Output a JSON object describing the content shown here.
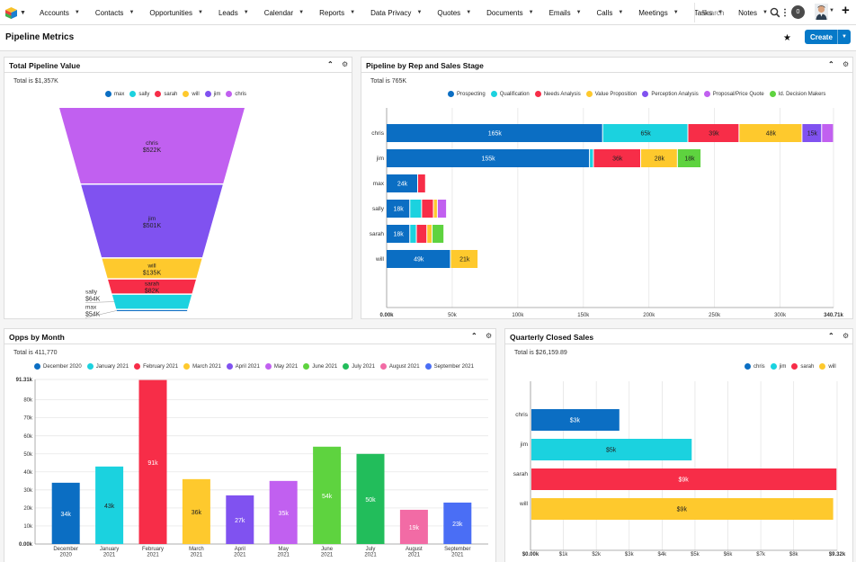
{
  "nav": {
    "items": [
      {
        "label": "Accounts"
      },
      {
        "label": "Contacts"
      },
      {
        "label": "Opportunities"
      },
      {
        "label": "Leads"
      },
      {
        "label": "Calendar"
      },
      {
        "label": "Reports"
      },
      {
        "label": "Data Privacy"
      },
      {
        "label": "Quotes"
      },
      {
        "label": "Documents"
      },
      {
        "label": "Emails"
      },
      {
        "label": "Calls"
      },
      {
        "label": "Meetings"
      },
      {
        "label": "Tasks"
      },
      {
        "label": "Notes"
      }
    ],
    "more_label": "⋮",
    "search_placeholder": "Search",
    "notification_count": "0"
  },
  "header": {
    "title": "Pipeline Metrics",
    "create_label": "Create"
  },
  "panels": {
    "funnel": {
      "title": "Total Pipeline Value",
      "total": "Total is $1,357K"
    },
    "rep_stage": {
      "title": "Pipeline by Rep and Sales Stage",
      "total": "Total is 765K"
    },
    "opps_month": {
      "title": "Opps by Month",
      "total": "Total is 411,770"
    },
    "quarterly": {
      "title": "Quarterly Closed Sales",
      "total": "Total is $26,159.89"
    }
  },
  "colors": {
    "blue": "#0b6ec3",
    "cyan": "#1bd2df",
    "red": "#f72d48",
    "yellow": "#fec92d",
    "purple": "#8052f0",
    "violet": "#c160f0",
    "green": "#5ed33f",
    "green2": "#22bd5b",
    "pink": "#f26ba5",
    "blue2": "#4a6ef5",
    "accent": "#0679c8"
  },
  "chart_data": [
    {
      "type": "funnel",
      "title": "Total Pipeline Value",
      "legend": [
        "max",
        "sally",
        "sarah",
        "will",
        "jim",
        "chris"
      ],
      "stages": [
        {
          "name": "chris",
          "label": "$522K",
          "value": 522,
          "color": "#c160f0"
        },
        {
          "name": "jim",
          "label": "$501K",
          "value": 501,
          "color": "#8052f0"
        },
        {
          "name": "will",
          "label": "$135K",
          "value": 135,
          "color": "#fec92d"
        },
        {
          "name": "sarah",
          "label": "$82K",
          "value": 82,
          "color": "#f72d48"
        },
        {
          "name": "sally",
          "label": "$64K",
          "value": 64,
          "color": "#1bd2df"
        },
        {
          "name": "max",
          "label": "$54K",
          "value": 54,
          "color": "#0b6ec3"
        }
      ]
    },
    {
      "type": "bar",
      "orientation": "horizontal-stacked",
      "title": "Pipeline by Rep and Sales Stage",
      "categories": [
        "chris",
        "jim",
        "max",
        "sally",
        "sarah",
        "will"
      ],
      "series": [
        {
          "name": "Prospecting",
          "color": "#0b6ec3",
          "values": [
            165,
            155,
            24,
            18,
            18,
            49
          ]
        },
        {
          "name": "Qualification",
          "color": "#1bd2df",
          "values": [
            65,
            3,
            0,
            9,
            5,
            0
          ]
        },
        {
          "name": "Needs Analysis",
          "color": "#f72d48",
          "values": [
            39,
            36,
            6,
            9,
            8,
            0
          ]
        },
        {
          "name": "Value Proposition",
          "color": "#fec92d",
          "values": [
            48,
            28,
            0,
            3,
            4,
            21
          ]
        },
        {
          "name": "Perception Analysis",
          "color": "#8052f0",
          "values": [
            15,
            0,
            0,
            0,
            0,
            0
          ]
        },
        {
          "name": "Proposal/Price Quote",
          "color": "#c160f0",
          "values": [
            9,
            0,
            0,
            7,
            0,
            0
          ]
        },
        {
          "name": "Id. Decision Makers",
          "color": "#5ed33f",
          "values": [
            0,
            18,
            0,
            0,
            9,
            0
          ]
        }
      ],
      "bar_labels": [
        [
          "165k",
          "65k",
          "39k",
          "48k",
          "15k",
          ""
        ],
        [
          "155k",
          "",
          "36k",
          "28k",
          "",
          "",
          "18k"
        ],
        [
          "24k"
        ],
        [
          "18k"
        ],
        [
          "18k"
        ],
        [
          "49k",
          "",
          "",
          "21k"
        ]
      ],
      "xlim": [
        0,
        340.71
      ],
      "ticks": [
        "0.00k",
        "50k",
        "100k",
        "150k",
        "200k",
        "250k",
        "300k",
        "340.71k"
      ],
      "tick_values": [
        0,
        50,
        100,
        150,
        200,
        250,
        300,
        340.71
      ]
    },
    {
      "type": "bar",
      "title": "Opps by Month",
      "legend": [
        "December 2020",
        "January 2021",
        "February 2021",
        "March 2021",
        "April 2021",
        "May 2021",
        "June 2021",
        "July 2021",
        "August 2021",
        "September 2021"
      ],
      "categories": [
        [
          "December",
          "2020"
        ],
        [
          "January",
          "2021"
        ],
        [
          "February",
          "2021"
        ],
        [
          "March",
          "2021"
        ],
        [
          "April",
          "2021"
        ],
        [
          "May",
          "2021"
        ],
        [
          "June",
          "2021"
        ],
        [
          "July",
          "2021"
        ],
        [
          "August",
          "2021"
        ],
        [
          "September",
          "2021"
        ]
      ],
      "values": [
        34,
        43,
        91,
        36,
        27,
        35,
        54,
        50,
        19,
        23
      ],
      "labels": [
        "34k",
        "43k",
        "91k",
        "36k",
        "27k",
        "35k",
        "54k",
        "50k",
        "19k",
        "23k"
      ],
      "colors": [
        "#0b6ec3",
        "#1bd2df",
        "#f72d48",
        "#fec92d",
        "#8052f0",
        "#c160f0",
        "#5ed33f",
        "#22bd5b",
        "#f26ba5",
        "#4a6ef5"
      ],
      "ylim": [
        0,
        91.31
      ],
      "ticks": [
        "0.00k",
        "10k",
        "20k",
        "30k",
        "40k",
        "50k",
        "60k",
        "70k",
        "80k",
        "91.31k"
      ],
      "tick_values": [
        0,
        10,
        20,
        30,
        40,
        50,
        60,
        70,
        80,
        91.31
      ]
    },
    {
      "type": "bar",
      "orientation": "horizontal",
      "title": "Quarterly Closed Sales",
      "legend": [
        "chris",
        "jim",
        "sarah",
        "will"
      ],
      "categories": [
        "chris",
        "jim",
        "sarah",
        "will"
      ],
      "values": [
        2.7,
        4.9,
        9.3,
        9.2
      ],
      "labels": [
        "$3k",
        "$5k",
        "$9k",
        "$9k"
      ],
      "colors": [
        "#0b6ec3",
        "#1bd2df",
        "#f72d48",
        "#fec92d"
      ],
      "xlim": [
        0,
        9.32
      ],
      "ticks": [
        "$0.00k",
        "$1k",
        "$2k",
        "$3k",
        "$4k",
        "$5k",
        "$6k",
        "$7k",
        "$8k",
        "$9.32k"
      ],
      "tick_values": [
        0,
        1,
        2,
        3,
        4,
        5,
        6,
        7,
        8,
        9.32
      ]
    }
  ]
}
